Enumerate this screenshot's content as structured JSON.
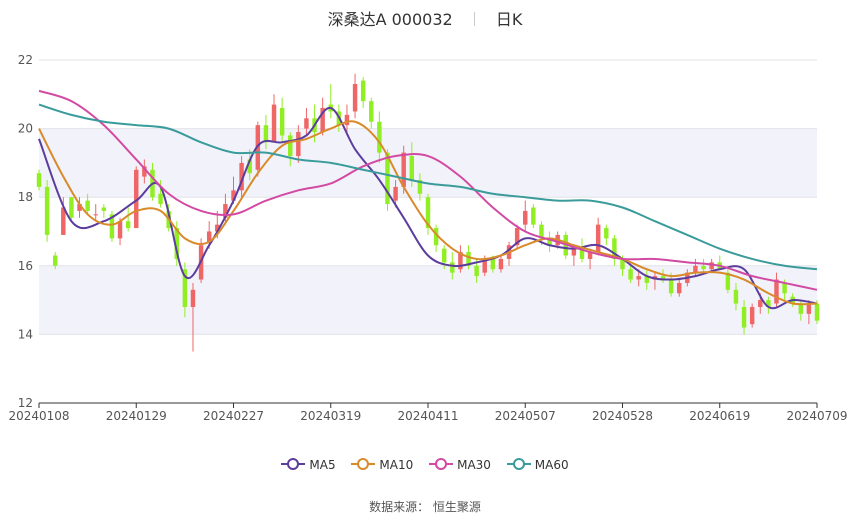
{
  "chart_data": {
    "type": "candlestick",
    "title": "深桑达A 000032",
    "period": "日K",
    "ylim": [
      12,
      22
    ],
    "yticks": [
      12,
      14,
      16,
      18,
      20,
      22
    ],
    "xticks": [
      "20240108",
      "20240129",
      "20240227",
      "20240319",
      "20240411",
      "20240507",
      "20240528",
      "20240619",
      "20240709"
    ],
    "up_color": "#ee6666",
    "down_color": "#91ee22",
    "grid": true,
    "legend_position": "bottom",
    "candles_ohlc": [
      [
        18.7,
        18.8,
        18.2,
        18.3
      ],
      [
        18.3,
        18.5,
        16.7,
        16.9
      ],
      [
        16.3,
        16.4,
        15.9,
        16.0
      ],
      [
        16.9,
        18.0,
        16.9,
        17.7
      ],
      [
        18.0,
        18.0,
        17.3,
        17.4
      ],
      [
        17.6,
        18.0,
        17.4,
        17.8
      ],
      [
        17.9,
        18.1,
        17.5,
        17.6
      ],
      [
        17.5,
        17.8,
        17.3,
        17.5
      ],
      [
        17.7,
        17.8,
        17.4,
        17.6
      ],
      [
        17.5,
        17.6,
        16.7,
        16.8
      ],
      [
        16.8,
        17.4,
        16.6,
        17.3
      ],
      [
        17.3,
        17.7,
        17.0,
        17.1
      ],
      [
        17.1,
        18.9,
        17.1,
        18.8
      ],
      [
        18.6,
        19.1,
        18.4,
        18.9
      ],
      [
        18.8,
        19.0,
        17.9,
        18.0
      ],
      [
        18.1,
        18.5,
        17.7,
        17.8
      ],
      [
        17.6,
        17.8,
        17.0,
        17.1
      ],
      [
        17.1,
        17.3,
        16.0,
        16.2
      ],
      [
        15.9,
        16.1,
        14.5,
        14.8
      ],
      [
        14.8,
        15.5,
        13.5,
        15.3
      ],
      [
        15.6,
        16.8,
        15.5,
        16.6
      ],
      [
        16.7,
        17.3,
        16.5,
        17.0
      ],
      [
        17.0,
        17.6,
        16.8,
        17.2
      ],
      [
        17.4,
        18.1,
        17.2,
        17.8
      ],
      [
        17.9,
        18.6,
        17.8,
        18.2
      ],
      [
        18.2,
        19.2,
        18.0,
        19.0
      ],
      [
        19.1,
        19.4,
        18.5,
        18.7
      ],
      [
        18.8,
        20.2,
        18.6,
        20.1
      ],
      [
        20.1,
        20.4,
        19.4,
        19.6
      ],
      [
        19.6,
        21.0,
        19.6,
        20.7
      ],
      [
        20.6,
        20.9,
        19.6,
        19.8
      ],
      [
        19.8,
        19.9,
        18.9,
        19.2
      ],
      [
        19.2,
        20.1,
        19.0,
        19.9
      ],
      [
        20.0,
        20.6,
        19.8,
        20.3
      ],
      [
        20.3,
        20.7,
        19.6,
        19.9
      ],
      [
        19.9,
        20.9,
        19.8,
        20.6
      ],
      [
        20.7,
        21.3,
        20.3,
        20.5
      ],
      [
        20.5,
        20.7,
        19.9,
        20.1
      ],
      [
        20.1,
        20.7,
        19.8,
        20.4
      ],
      [
        20.5,
        21.6,
        20.3,
        21.3
      ],
      [
        21.4,
        21.5,
        20.6,
        20.8
      ],
      [
        20.8,
        20.9,
        20.0,
        20.2
      ],
      [
        20.2,
        20.5,
        19.0,
        19.3
      ],
      [
        19.3,
        19.4,
        17.6,
        17.8
      ],
      [
        17.9,
        18.5,
        17.7,
        18.3
      ],
      [
        18.3,
        19.5,
        18.1,
        19.3
      ],
      [
        19.2,
        19.6,
        18.3,
        18.5
      ],
      [
        18.5,
        18.7,
        17.9,
        18.1
      ],
      [
        18.0,
        18.1,
        16.9,
        17.1
      ],
      [
        17.1,
        17.2,
        16.4,
        16.6
      ],
      [
        16.5,
        16.6,
        15.9,
        16.1
      ],
      [
        16.1,
        16.4,
        15.6,
        15.8
      ],
      [
        15.9,
        16.6,
        15.8,
        16.4
      ],
      [
        16.4,
        16.6,
        15.9,
        16.0
      ],
      [
        16.0,
        16.2,
        15.5,
        15.7
      ],
      [
        15.8,
        16.3,
        15.7,
        16.2
      ],
      [
        16.2,
        16.3,
        15.8,
        15.9
      ],
      [
        15.9,
        16.3,
        15.8,
        16.2
      ],
      [
        16.2,
        16.7,
        16.0,
        16.6
      ],
      [
        16.6,
        17.2,
        16.5,
        17.1
      ],
      [
        17.2,
        17.9,
        17.0,
        17.6
      ],
      [
        17.7,
        17.8,
        17.1,
        17.2
      ],
      [
        17.2,
        17.3,
        16.6,
        16.8
      ],
      [
        16.8,
        17.0,
        16.4,
        16.6
      ],
      [
        16.6,
        17.0,
        16.5,
        16.9
      ],
      [
        16.9,
        17.0,
        16.2,
        16.3
      ],
      [
        16.3,
        16.6,
        16.0,
        16.5
      ],
      [
        16.5,
        16.8,
        16.1,
        16.2
      ],
      [
        16.2,
        16.5,
        15.9,
        16.4
      ],
      [
        16.4,
        17.4,
        16.3,
        17.2
      ],
      [
        17.1,
        17.2,
        16.6,
        16.8
      ],
      [
        16.8,
        16.9,
        16.0,
        16.2
      ],
      [
        16.2,
        16.3,
        15.7,
        15.9
      ],
      [
        15.9,
        16.0,
        15.5,
        15.6
      ],
      [
        15.6,
        15.9,
        15.4,
        15.7
      ],
      [
        15.7,
        15.9,
        15.3,
        15.5
      ],
      [
        15.6,
        15.8,
        15.3,
        15.7
      ],
      [
        15.7,
        15.9,
        15.5,
        15.6
      ],
      [
        15.6,
        15.8,
        15.1,
        15.2
      ],
      [
        15.2,
        15.6,
        15.1,
        15.5
      ],
      [
        15.5,
        15.9,
        15.4,
        15.8
      ],
      [
        15.8,
        16.2,
        15.7,
        16.0
      ],
      [
        16.0,
        16.2,
        15.8,
        15.9
      ],
      [
        15.9,
        16.2,
        15.8,
        16.1
      ],
      [
        16.1,
        16.3,
        15.9,
        15.9
      ],
      [
        15.8,
        15.9,
        15.2,
        15.3
      ],
      [
        15.3,
        15.5,
        14.7,
        14.9
      ],
      [
        14.8,
        15.0,
        14.0,
        14.2
      ],
      [
        14.3,
        14.9,
        14.2,
        14.8
      ],
      [
        14.8,
        15.2,
        14.6,
        15.0
      ],
      [
        15.0,
        15.1,
        14.6,
        14.8
      ],
      [
        14.9,
        15.8,
        14.8,
        15.6
      ],
      [
        15.5,
        15.6,
        15.0,
        15.2
      ],
      [
        15.1,
        15.2,
        14.8,
        14.9
      ],
      [
        14.9,
        15.0,
        14.4,
        14.6
      ],
      [
        14.6,
        15.0,
        14.3,
        14.9
      ],
      [
        14.9,
        15.0,
        14.3,
        14.4
      ]
    ],
    "series": [
      {
        "name": "MA5",
        "color": "#5b3d9d",
        "x": [
          0,
          4,
          8,
          12,
          15,
          18,
          21,
          24,
          27,
          30,
          33,
          36,
          39,
          42,
          45,
          48,
          51,
          54,
          57,
          60,
          63,
          66,
          69,
          72,
          75,
          78,
          81,
          84,
          87,
          90,
          93,
          96
        ],
        "y": [
          19.7,
          17.3,
          17.3,
          17.9,
          18.3,
          15.7,
          16.6,
          17.9,
          19.5,
          19.6,
          19.8,
          20.6,
          19.4,
          18.5,
          17.4,
          16.3,
          16.0,
          16.1,
          16.3,
          16.8,
          16.6,
          16.5,
          16.6,
          16.2,
          15.7,
          15.6,
          15.7,
          15.9,
          15.9,
          14.8,
          15.0,
          14.9
        ]
      },
      {
        "name": "MA10",
        "color": "#d98a2b",
        "x": [
          0,
          3,
          6,
          9,
          12,
          15,
          18,
          21,
          24,
          27,
          30,
          33,
          36,
          39,
          42,
          45,
          48,
          51,
          54,
          57,
          60,
          63,
          66,
          69,
          72,
          75,
          78,
          81,
          84,
          87,
          90,
          93,
          96
        ],
        "y": [
          20.0,
          18.6,
          17.5,
          17.2,
          17.6,
          17.6,
          16.8,
          16.7,
          17.6,
          18.7,
          19.5,
          19.7,
          20.0,
          20.2,
          19.6,
          18.3,
          17.2,
          16.5,
          16.2,
          16.3,
          16.6,
          16.8,
          16.6,
          16.4,
          16.2,
          15.9,
          15.7,
          15.8,
          15.8,
          15.6,
          15.2,
          14.9,
          14.9
        ]
      },
      {
        "name": "MA30",
        "color": "#d24aa3",
        "x": [
          0,
          4,
          8,
          12,
          16,
          20,
          24,
          28,
          32,
          36,
          40,
          44,
          48,
          52,
          56,
          60,
          64,
          68,
          72,
          76,
          80,
          84,
          88,
          92,
          96
        ],
        "y": [
          21.1,
          20.8,
          20.1,
          19.1,
          18.1,
          17.6,
          17.5,
          17.9,
          18.2,
          18.4,
          18.9,
          19.2,
          19.2,
          18.6,
          17.7,
          17.0,
          16.7,
          16.4,
          16.2,
          16.2,
          16.1,
          16.0,
          15.7,
          15.5,
          15.3
        ]
      },
      {
        "name": "MA60",
        "color": "#3a9b9b",
        "x": [
          0,
          4,
          8,
          12,
          16,
          20,
          24,
          28,
          32,
          36,
          40,
          44,
          48,
          52,
          56,
          60,
          64,
          68,
          72,
          76,
          80,
          84,
          88,
          92,
          96
        ],
        "y": [
          20.7,
          20.4,
          20.2,
          20.1,
          20.0,
          19.6,
          19.3,
          19.3,
          19.1,
          19.0,
          18.8,
          18.6,
          18.4,
          18.3,
          18.1,
          18.0,
          17.9,
          17.9,
          17.7,
          17.3,
          16.9,
          16.5,
          16.2,
          16.0,
          15.9
        ]
      }
    ]
  },
  "header": {
    "stock": "深桑达A 000032",
    "period": "日K"
  },
  "legend": {
    "items": [
      "MA5",
      "MA10",
      "MA30",
      "MA60"
    ]
  },
  "source": {
    "label": "数据来源：",
    "value": "恒生聚源"
  }
}
